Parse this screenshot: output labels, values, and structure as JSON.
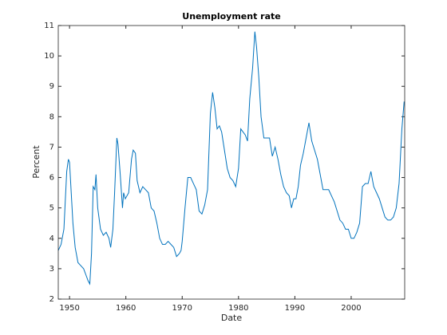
{
  "chart_data": {
    "type": "line",
    "title": "Unemployment rate",
    "xlabel": "Date",
    "ylabel": "Percent",
    "x": [
      1948.0,
      1948.5,
      1949.0,
      1949.5,
      1949.8,
      1950.0,
      1950.3,
      1950.6,
      1951.0,
      1951.5,
      1952.0,
      1952.5,
      1952.9,
      1953.3,
      1953.6,
      1953.9,
      1954.2,
      1954.5,
      1954.7,
      1955.0,
      1955.5,
      1956.0,
      1956.5,
      1957.0,
      1957.3,
      1957.7,
      1958.0,
      1958.4,
      1958.6,
      1959.0,
      1959.4,
      1959.6,
      1959.9,
      1960.5,
      1961.0,
      1961.3,
      1961.7,
      1962.0,
      1962.5,
      1963.0,
      1963.5,
      1964.0,
      1964.5,
      1965.0,
      1965.5,
      1966.0,
      1966.5,
      1967.0,
      1967.5,
      1968.0,
      1968.5,
      1969.0,
      1969.5,
      1969.8,
      1970.0,
      1970.5,
      1971.0,
      1971.5,
      1972.0,
      1972.5,
      1973.0,
      1973.5,
      1974.0,
      1974.5,
      1975.0,
      1975.4,
      1975.8,
      1976.2,
      1976.6,
      1977.0,
      1977.5,
      1978.0,
      1978.5,
      1979.0,
      1979.5,
      1980.0,
      1980.4,
      1980.8,
      1981.2,
      1981.6,
      1982.0,
      1982.5,
      1982.9,
      1983.2,
      1983.6,
      1984.0,
      1984.5,
      1985.0,
      1985.5,
      1986.0,
      1986.5,
      1987.0,
      1987.5,
      1988.0,
      1988.5,
      1989.0,
      1989.4,
      1989.8,
      1990.2,
      1990.6,
      1991.0,
      1991.5,
      1992.0,
      1992.5,
      1993.0,
      1993.5,
      1994.0,
      1994.5,
      1995.0,
      1995.5,
      1996.0,
      1996.5,
      1997.0,
      1997.5,
      1998.0,
      1998.5,
      1999.0,
      1999.5,
      2000.0,
      2000.5,
      2001.0,
      2001.5,
      2002.0,
      2002.5,
      2003.0,
      2003.5,
      2004.0,
      2004.5,
      2005.0,
      2005.5,
      2006.0,
      2006.5,
      2007.0,
      2007.5,
      2008.0,
      2008.5,
      2009.0,
      2009.4
    ],
    "series": [
      {
        "name": "Unemployment rate",
        "color": "#0072bd",
        "values": [
          3.6,
          3.8,
          4.3,
          6.2,
          6.6,
          6.5,
          5.5,
          4.5,
          3.7,
          3.2,
          3.1,
          3.0,
          2.8,
          2.6,
          2.5,
          3.5,
          5.7,
          5.6,
          6.1,
          5.0,
          4.3,
          4.1,
          4.2,
          4.0,
          3.7,
          4.3,
          5.5,
          7.3,
          7.1,
          6.1,
          5.0,
          5.5,
          5.3,
          5.5,
          6.6,
          6.9,
          6.8,
          5.9,
          5.5,
          5.7,
          5.6,
          5.5,
          5.0,
          4.9,
          4.5,
          4.0,
          3.8,
          3.8,
          3.9,
          3.8,
          3.7,
          3.4,
          3.5,
          3.6,
          3.9,
          5.0,
          6.0,
          6.0,
          5.8,
          5.6,
          4.9,
          4.8,
          5.1,
          5.6,
          8.1,
          8.8,
          8.3,
          7.6,
          7.7,
          7.5,
          6.9,
          6.3,
          6.0,
          5.9,
          5.7,
          6.3,
          7.6,
          7.5,
          7.4,
          7.2,
          8.6,
          9.6,
          10.8,
          10.3,
          9.3,
          8.0,
          7.3,
          7.3,
          7.3,
          6.7,
          7.0,
          6.6,
          6.1,
          5.7,
          5.5,
          5.4,
          5.0,
          5.3,
          5.3,
          5.7,
          6.4,
          6.8,
          7.3,
          7.8,
          7.2,
          6.9,
          6.6,
          6.1,
          5.6,
          5.6,
          5.6,
          5.4,
          5.2,
          4.9,
          4.6,
          4.5,
          4.3,
          4.3,
          4.0,
          4.0,
          4.2,
          4.5,
          5.7,
          5.8,
          5.8,
          6.2,
          5.7,
          5.5,
          5.3,
          5.0,
          4.7,
          4.6,
          4.6,
          4.7,
          5.0,
          5.8,
          7.6,
          8.5
        ]
      }
    ],
    "xlim": [
      1948,
      2009.5
    ],
    "xticks": [
      1950,
      1960,
      1970,
      1980,
      1990,
      2000
    ],
    "ylim": [
      2,
      11
    ],
    "yticks": [
      2,
      3,
      4,
      5,
      6,
      7,
      8,
      9,
      10,
      11
    ]
  }
}
